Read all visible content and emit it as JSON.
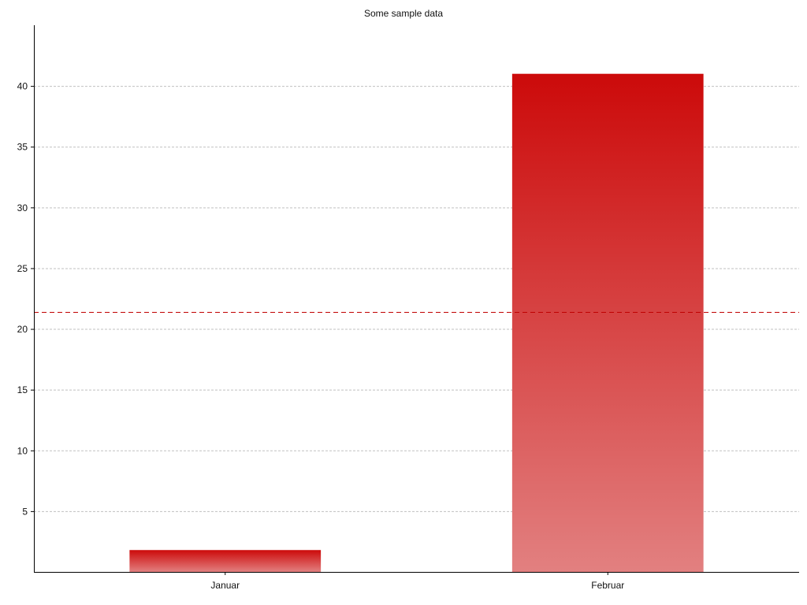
{
  "chart_data": {
    "type": "bar",
    "title": "Some sample data",
    "xlabel": "",
    "ylabel": "",
    "categories": [
      "Januar",
      "Februar"
    ],
    "values": [
      1.8,
      41
    ],
    "ylim": [
      0,
      45
    ],
    "yticks": [
      5,
      10,
      15,
      20,
      25,
      30,
      35,
      40
    ],
    "reference_line": {
      "value": 21.4,
      "style": "dashed",
      "color": "#c00000"
    },
    "grid": true,
    "legend": "none",
    "colors": {
      "bar_top": "#cc0a0a",
      "bar_bottom": "#e28080",
      "grid": "#c0c0c0",
      "axis": "#000000"
    }
  }
}
